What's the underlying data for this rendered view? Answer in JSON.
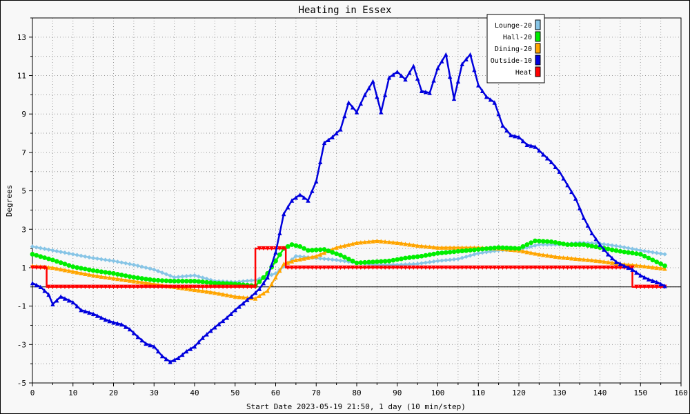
{
  "chart_data": {
    "type": "line",
    "title": "Heating in Essex",
    "xlabel": "Start Date 2023-05-19 21:50, 1 day (10 min/step)",
    "ylabel": "Degrees",
    "xlim": [
      0,
      160
    ],
    "ylim": [
      -5,
      14
    ],
    "x_ticks": [
      0,
      10,
      20,
      30,
      40,
      50,
      60,
      70,
      80,
      90,
      100,
      110,
      120,
      130,
      140,
      150,
      160
    ],
    "y_ticks": [
      -5,
      -3,
      -1,
      1,
      3,
      5,
      7,
      9,
      11,
      13
    ],
    "grid": true,
    "zero_line": true,
    "legend_position": "top-right",
    "series": [
      {
        "name": "Lounge-20",
        "color": "#87c5e6",
        "marker": "diamond",
        "x": [
          0,
          5,
          10,
          15,
          20,
          25,
          30,
          35,
          40,
          45,
          50,
          55,
          60,
          65,
          70,
          75,
          80,
          85,
          90,
          95,
          100,
          105,
          110,
          115,
          120,
          125,
          130,
          135,
          140,
          145,
          150,
          156
        ],
        "y": [
          2.1,
          1.9,
          1.7,
          1.5,
          1.35,
          1.15,
          0.9,
          0.5,
          0.6,
          0.3,
          0.25,
          0.35,
          0.7,
          1.6,
          1.5,
          1.4,
          1.25,
          1.15,
          1.15,
          1.2,
          1.35,
          1.45,
          1.75,
          1.9,
          1.95,
          2.2,
          2.2,
          2.3,
          2.25,
          2.1,
          1.9,
          1.7
        ]
      },
      {
        "name": "Hall-20",
        "color": "#00ee00",
        "marker": "circle",
        "x": [
          0,
          5,
          10,
          15,
          20,
          25,
          30,
          35,
          40,
          45,
          50,
          55,
          58,
          62,
          64,
          66,
          68,
          72,
          76,
          80,
          84,
          88,
          92,
          96,
          100,
          105,
          110,
          115,
          120,
          124,
          128,
          132,
          136,
          140,
          145,
          150,
          156
        ],
        "y": [
          1.7,
          1.4,
          1.05,
          0.85,
          0.7,
          0.5,
          0.35,
          0.3,
          0.3,
          0.2,
          0.15,
          0.05,
          0.7,
          2.0,
          2.2,
          2.1,
          1.9,
          1.95,
          1.65,
          1.25,
          1.3,
          1.35,
          1.5,
          1.6,
          1.75,
          1.85,
          1.95,
          2.05,
          2.0,
          2.4,
          2.35,
          2.2,
          2.2,
          2.05,
          1.85,
          1.7,
          1.1
        ]
      },
      {
        "name": "Dining-20",
        "color": "#ffa500",
        "marker": "triangle",
        "x": [
          0,
          5,
          10,
          15,
          20,
          25,
          30,
          35,
          40,
          45,
          50,
          55,
          58,
          62,
          65,
          70,
          75,
          80,
          85,
          90,
          95,
          100,
          105,
          110,
          115,
          120,
          125,
          130,
          135,
          140,
          145,
          150,
          156
        ],
        "y": [
          1.1,
          1.0,
          0.8,
          0.6,
          0.45,
          0.3,
          0.15,
          0.0,
          -0.15,
          -0.3,
          -0.5,
          -0.6,
          -0.2,
          1.2,
          1.4,
          1.6,
          2.05,
          2.3,
          2.4,
          2.3,
          2.15,
          2.05,
          2.05,
          2.05,
          2.0,
          1.9,
          1.7,
          1.55,
          1.45,
          1.35,
          1.2,
          1.1,
          0.95
        ]
      },
      {
        "name": "Outside-10",
        "color": "#0000dd",
        "marker": "triangle",
        "x": [
          0,
          2,
          4,
          5,
          6,
          7,
          8,
          10,
          12,
          15,
          18,
          20,
          22,
          24,
          26,
          28,
          30,
          32,
          34,
          36,
          38,
          40,
          42,
          45,
          48,
          50,
          52,
          54,
          56,
          58,
          60,
          62,
          64,
          66,
          68,
          70,
          72,
          74,
          76,
          78,
          80,
          82,
          84,
          86,
          88,
          90,
          92,
          94,
          96,
          98,
          100,
          102,
          104,
          106,
          108,
          110,
          112,
          114,
          116,
          118,
          120,
          122,
          124,
          126,
          128,
          130,
          132,
          134,
          136,
          138,
          140,
          142,
          144,
          146,
          148,
          150,
          152,
          154,
          156
        ],
        "y": [
          0.2,
          0.0,
          -0.4,
          -0.9,
          -0.7,
          -0.5,
          -0.6,
          -0.8,
          -1.2,
          -1.4,
          -1.7,
          -1.85,
          -1.95,
          -2.2,
          -2.6,
          -2.95,
          -3.1,
          -3.6,
          -3.9,
          -3.7,
          -3.35,
          -3.1,
          -2.65,
          -2.1,
          -1.6,
          -1.2,
          -0.85,
          -0.5,
          -0.1,
          0.5,
          1.8,
          3.8,
          4.5,
          4.8,
          4.5,
          5.5,
          7.5,
          7.8,
          8.2,
          9.6,
          9.1,
          10.0,
          10.7,
          9.1,
          10.9,
          11.2,
          10.8,
          11.5,
          10.2,
          10.1,
          11.4,
          12.1,
          9.8,
          11.6,
          12.1,
          10.5,
          9.9,
          9.6,
          8.4,
          7.9,
          7.8,
          7.4,
          7.3,
          6.9,
          6.5,
          6.0,
          5.3,
          4.6,
          3.6,
          2.8,
          2.2,
          1.7,
          1.3,
          1.1,
          0.9,
          0.6,
          0.4,
          0.25,
          0.05
        ]
      },
      {
        "name": "Heat",
        "color": "#ff0000",
        "marker": "triangle-down",
        "x": [
          0,
          3.5,
          3.5,
          55,
          55,
          62.5,
          62.5,
          148,
          148,
          156
        ],
        "y": [
          1,
          1,
          0,
          0,
          2,
          2,
          1,
          1,
          0,
          0
        ]
      }
    ]
  }
}
